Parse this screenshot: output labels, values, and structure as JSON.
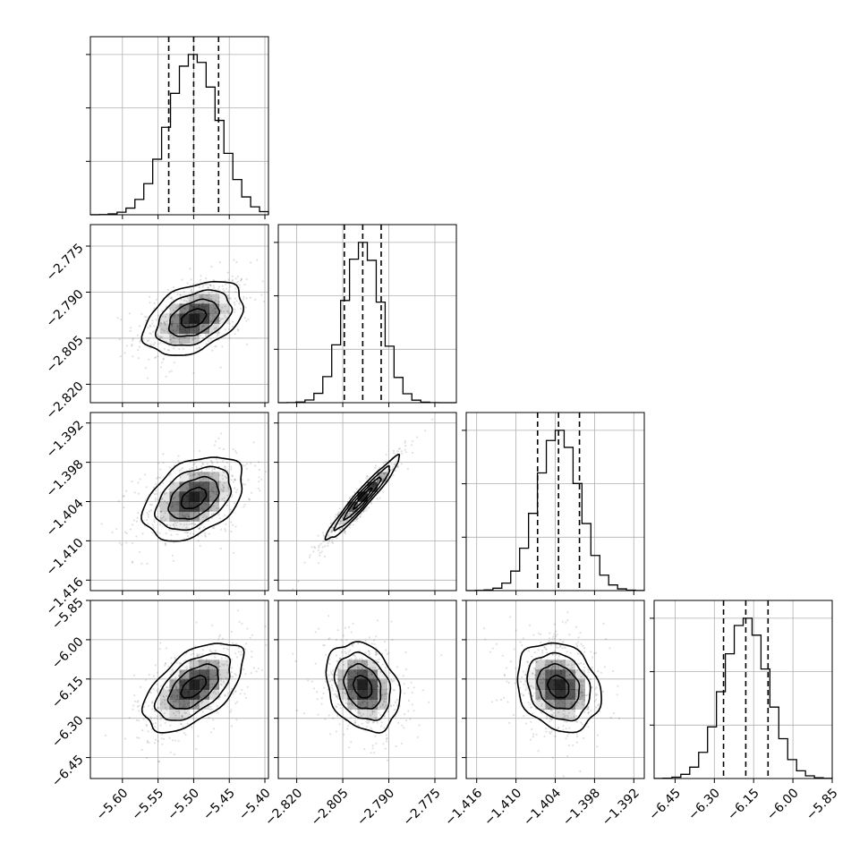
{
  "chart_data": {
    "type": "scatter",
    "subtype": "corner",
    "title": "",
    "parameters": [
      {
        "mean": -5.5,
        "sd": 0.035,
        "q16": -5.535,
        "q50": -5.5,
        "q84": -5.465,
        "range": [
          -5.645,
          -5.395
        ],
        "ticks": [
          -5.6,
          -5.55,
          -5.5,
          -5.45,
          -5.4
        ],
        "tick_labels": [
          "−5.60",
          "−5.55",
          "−5.50",
          "−5.45",
          "−5.40"
        ]
      },
      {
        "mean": -2.7985,
        "sd": 0.006,
        "q16": -2.8045,
        "q50": -2.7985,
        "q84": -2.7925,
        "range": [
          -2.826,
          -2.768
        ],
        "ticks": [
          -2.82,
          -2.805,
          -2.79,
          -2.775
        ],
        "tick_labels": [
          "−2.820",
          "−2.805",
          "−2.790",
          "−2.775"
        ]
      },
      {
        "mean": -1.4035,
        "sd": 0.0032,
        "q16": -1.4067,
        "q50": -1.4035,
        "q84": -1.4003,
        "range": [
          -1.4176,
          -1.3904
        ],
        "ticks": [
          -1.416,
          -1.41,
          -1.404,
          -1.398,
          -1.392
        ],
        "tick_labels": [
          "−1.416",
          "−1.410",
          "−1.404",
          "−1.398",
          "−1.392"
        ]
      },
      {
        "mean": -6.18,
        "sd": 0.085,
        "q16": -6.265,
        "q50": -6.18,
        "q84": -6.095,
        "range": [
          -6.53,
          -5.85
        ],
        "ticks": [
          -6.45,
          -6.3,
          -6.15,
          -6.0,
          -5.85
        ],
        "tick_labels": [
          "−6.45",
          "−6.30",
          "−6.15",
          "−6.00",
          "−5.85"
        ]
      }
    ],
    "correlations": [
      [
        1.0,
        0.4,
        0.4,
        0.55
      ],
      [
        0.4,
        1.0,
        0.96,
        -0.25
      ],
      [
        0.4,
        0.96,
        1.0,
        -0.2
      ],
      [
        0.55,
        -0.25,
        -0.2,
        1.0
      ]
    ],
    "quantiles": [
      0.16,
      0.5,
      0.84
    ],
    "grid": true,
    "colors": {
      "line": "#000000",
      "grid": "#b0b0b0",
      "points": "#000000"
    }
  }
}
